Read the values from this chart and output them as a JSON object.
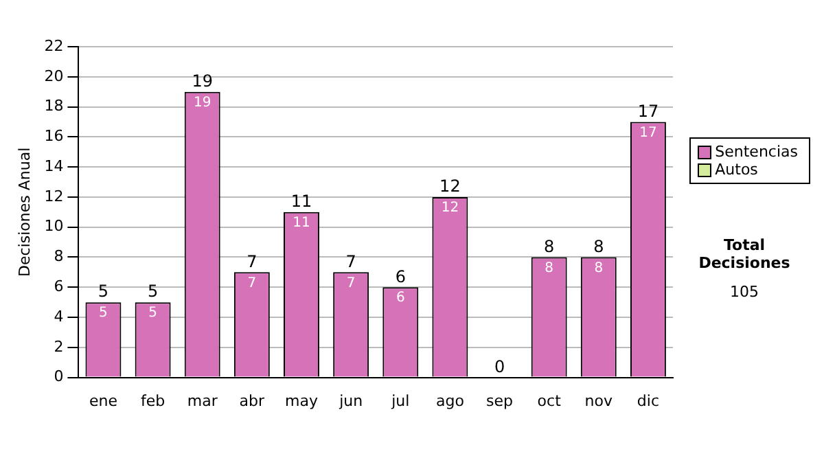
{
  "chart_data": {
    "type": "bar",
    "ylabel": "Decisiones Anual",
    "categories": [
      "ene",
      "feb",
      "mar",
      "abr",
      "may",
      "jun",
      "jul",
      "ago",
      "sep",
      "oct",
      "nov",
      "dic"
    ],
    "series": [
      {
        "name": "Sentencias",
        "color": "#d672b8",
        "values": [
          5,
          5,
          19,
          7,
          11,
          7,
          6,
          12,
          0,
          8,
          8,
          17
        ],
        "value_labels": [
          "5",
          "5",
          "19",
          "7",
          "11",
          "7",
          "6",
          "12",
          null,
          "8",
          "8",
          "17"
        ]
      },
      {
        "name": "Autos",
        "color": "#d4ec9c",
        "values": [
          0,
          0,
          0,
          0,
          0,
          0,
          0,
          0,
          0,
          0,
          0,
          0
        ]
      }
    ],
    "stacked": true,
    "totals": [
      "5",
      "5",
      "19",
      "7",
      "11",
      "7",
      "6",
      "12",
      "0",
      "8",
      "8",
      "17"
    ],
    "ylim": [
      0,
      22
    ],
    "yticks": [
      0,
      2,
      4,
      6,
      8,
      10,
      12,
      14,
      16,
      18,
      20,
      22
    ],
    "grid": "y",
    "legend": "right",
    "annotations": [
      "Total Decisiones",
      "105"
    ]
  }
}
